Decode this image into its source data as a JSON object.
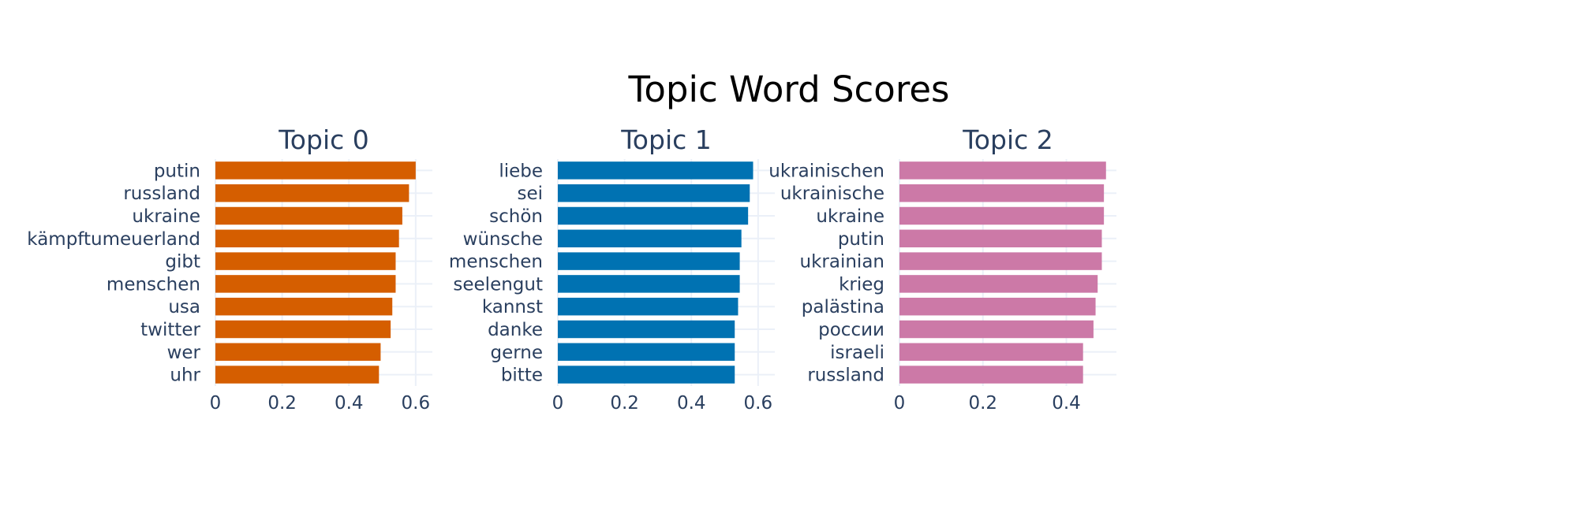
{
  "title": "Topic Word Scores",
  "chart_data": [
    {
      "type": "bar",
      "orientation": "horizontal",
      "title": "Topic 0",
      "color": "#D55E00",
      "categories": [
        "putin",
        "russland",
        "ukraine",
        "kämpftumeuerland",
        "gibt",
        "menschen",
        "usa",
        "twitter",
        "wer",
        "uhr"
      ],
      "values": [
        0.6,
        0.58,
        0.56,
        0.55,
        0.54,
        0.54,
        0.53,
        0.525,
        0.495,
        0.49
      ],
      "xlim": [
        0,
        0.65
      ],
      "xticks": [
        0,
        0.2,
        0.4,
        0.6
      ],
      "xtick_labels": [
        "0",
        "0.2",
        "0.4",
        "0.6"
      ],
      "grid": true
    },
    {
      "type": "bar",
      "orientation": "horizontal",
      "title": "Topic 1",
      "color": "#0072B2",
      "categories": [
        "liebe",
        "sei",
        "schön",
        "wünsche",
        "menschen",
        "seelengut",
        "kannst",
        "danke",
        "gerne",
        "bitte"
      ],
      "values": [
        0.585,
        0.575,
        0.57,
        0.55,
        0.545,
        0.545,
        0.54,
        0.53,
        0.53,
        0.53
      ],
      "xlim": [
        0,
        0.65
      ],
      "xticks": [
        0,
        0.2,
        0.4,
        0.6
      ],
      "xtick_labels": [
        "0",
        "0.2",
        "0.4",
        "0.6"
      ],
      "grid": true
    },
    {
      "type": "bar",
      "orientation": "horizontal",
      "title": "Topic 2",
      "color": "#CC79A7",
      "categories": [
        "ukrainischen",
        "ukrainische",
        "ukraine",
        "putin",
        "ukrainian",
        "krieg",
        "palästina",
        "россии",
        "israeli",
        "russland"
      ],
      "values": [
        0.495,
        0.49,
        0.49,
        0.485,
        0.485,
        0.475,
        0.47,
        0.465,
        0.44,
        0.44
      ],
      "xlim": [
        0,
        0.52
      ],
      "xticks": [
        0,
        0.2,
        0.4
      ],
      "xtick_labels": [
        "0",
        "0.2",
        "0.4"
      ],
      "grid": true
    }
  ]
}
